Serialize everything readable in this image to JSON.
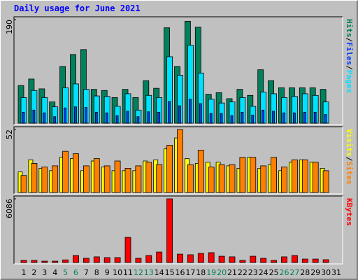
{
  "chart_data": [
    {
      "type": "bar",
      "title": "Daily usage for June 2021",
      "ylim": [
        0,
        190
      ],
      "yticks": [
        190
      ],
      "separator": "/",
      "series": [
        {
          "name": "Hits",
          "color": "#00805c",
          "values": [
            69,
            81,
            63,
            39,
            104,
            126,
            135,
            62,
            60,
            47,
            62,
            47,
            78,
            64,
            175,
            104,
            187,
            176,
            53,
            56,
            45,
            62,
            51,
            98,
            78,
            65,
            65,
            65,
            65,
            62,
            null
          ]
        },
        {
          "name": "Files",
          "color": "#0040ff",
          "values": [
            20,
            24,
            19,
            12,
            28,
            30,
            29,
            20,
            19,
            14,
            22,
            12,
            21,
            20,
            40,
            32,
            44,
            36,
            18,
            18,
            14,
            20,
            15,
            24,
            22,
            19,
            19,
            20,
            20,
            16,
            null
          ]
        },
        {
          "name": "Pages",
          "color": "#00e0ff",
          "values": [
            47,
            60,
            47,
            30,
            65,
            72,
            62,
            50,
            49,
            31,
            54,
            24,
            51,
            47,
            122,
            88,
            143,
            92,
            44,
            37,
            39,
            47,
            31,
            57,
            54,
            47,
            49,
            54,
            51,
            39,
            null
          ]
        }
      ]
    },
    {
      "type": "bar",
      "ylim": [
        0,
        52
      ],
      "yticks": [
        52
      ],
      "separator": "/",
      "series": [
        {
          "name": "Visits",
          "color": "#ffff00",
          "values": [
            17,
            27,
            20,
            18,
            29,
            28,
            18,
            26,
            21,
            18,
            18,
            18,
            26,
            27,
            36,
            45,
            28,
            24,
            25,
            25,
            22,
            20,
            29,
            20,
            23,
            18,
            25,
            27,
            25,
            20,
            null
          ]
        },
        {
          "name": "Sites",
          "color": "#ff8000",
          "values": [
            14,
            24,
            21,
            22,
            34,
            32,
            22,
            28,
            22,
            26,
            20,
            22,
            25,
            23,
            39,
            52,
            23,
            35,
            21,
            23,
            23,
            29,
            29,
            22,
            29,
            21,
            27,
            27,
            25,
            18,
            null
          ]
        }
      ]
    },
    {
      "type": "bar",
      "ylim": [
        0,
        6086
      ],
      "yticks": [
        6086
      ],
      "series": [
        {
          "name": "KBytes",
          "color": "#ff0000",
          "values": [
            200,
            200,
            130,
            130,
            250,
            670,
            400,
            540,
            470,
            470,
            2400,
            400,
            670,
            1000,
            6086,
            800,
            740,
            870,
            940,
            600,
            540,
            200,
            600,
            400,
            200,
            540,
            670,
            330,
            330,
            270,
            null
          ]
        }
      ],
      "categories": [
        "1",
        "2",
        "3",
        "4",
        "5",
        "6",
        "7",
        "8",
        "9",
        "10",
        "11",
        "12",
        "13",
        "14",
        "15",
        "16",
        "17",
        "18",
        "19",
        "20",
        "21",
        "22",
        "23",
        "24",
        "25",
        "26",
        "27",
        "28",
        "29",
        "30",
        "31"
      ],
      "category_colors": [
        "#000000",
        "#000000",
        "#000000",
        "#000000",
        "#00805c",
        "#00805c",
        "#000000",
        "#000000",
        "#000000",
        "#000000",
        "#000000",
        "#00805c",
        "#00805c",
        "#000000",
        "#000000",
        "#000000",
        "#000000",
        "#000000",
        "#00805c",
        "#00805c",
        "#000000",
        "#000000",
        "#000000",
        "#000000",
        "#000000",
        "#00805c",
        "#00805c",
        "#000000",
        "#000000",
        "#000000",
        "#000000"
      ]
    }
  ]
}
